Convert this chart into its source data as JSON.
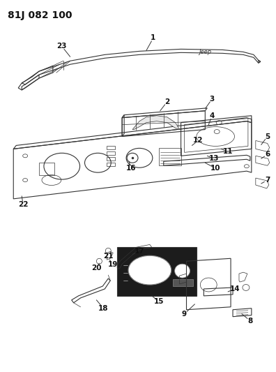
{
  "title": "81J 082 100",
  "bg_color": "#ffffff",
  "line_color": "#333333",
  "title_fontsize": 10,
  "label_fontsize": 7.5,
  "figsize": [
    3.96,
    5.33
  ],
  "dpi": 100
}
